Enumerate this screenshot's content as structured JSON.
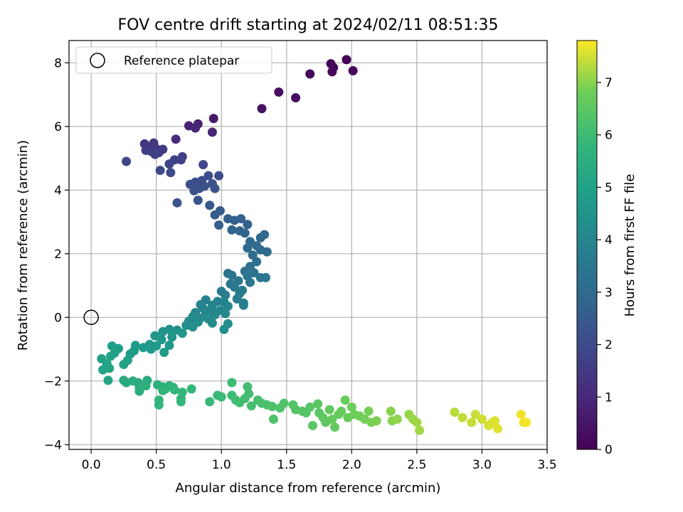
{
  "chart_data": {
    "type": "scatter",
    "title": "FOV centre drift starting at 2024/02/11 08:51:35",
    "xlabel": "Angular distance from reference (arcmin)",
    "ylabel": "Rotation from reference (arcmin)",
    "colorbar_label": "Hours from first FF file",
    "colormap": "viridis",
    "xlim": [
      -0.17,
      3.5
    ],
    "ylim": [
      -4.15,
      8.7
    ],
    "clim": [
      0,
      7.8
    ],
    "xticks": [
      "0.0",
      "0.5",
      "1.0",
      "1.5",
      "2.0",
      "2.5",
      "3.0",
      "3.5"
    ],
    "yticks": [
      "−4",
      "−2",
      "0",
      "2",
      "4",
      "6",
      "8"
    ],
    "cticks": [
      "0",
      "1",
      "2",
      "3",
      "4",
      "5",
      "6",
      "7"
    ],
    "grid": true,
    "legend": {
      "position": "top-left",
      "label": "Reference platepar"
    },
    "reference_point": {
      "x": 0.0,
      "y": 0.0
    },
    "points": [
      {
        "x": 1.96,
        "y": 8.1,
        "t": 0.05
      },
      {
        "x": 1.84,
        "y": 7.97,
        "t": 0.1
      },
      {
        "x": 1.86,
        "y": 7.85,
        "t": 0.12
      },
      {
        "x": 1.85,
        "y": 7.72,
        "t": 0.15
      },
      {
        "x": 2.01,
        "y": 7.75,
        "t": 0.18
      },
      {
        "x": 1.68,
        "y": 7.65,
        "t": 0.2
      },
      {
        "x": 1.44,
        "y": 7.08,
        "t": 0.3
      },
      {
        "x": 1.57,
        "y": 6.9,
        "t": 0.32
      },
      {
        "x": 1.31,
        "y": 6.56,
        "t": 0.4
      },
      {
        "x": 0.94,
        "y": 6.25,
        "t": 0.6
      },
      {
        "x": 0.75,
        "y": 6.02,
        "t": 0.8
      },
      {
        "x": 0.82,
        "y": 6.08,
        "t": 0.85
      },
      {
        "x": 0.8,
        "y": 5.95,
        "t": 0.9
      },
      {
        "x": 0.93,
        "y": 5.82,
        "t": 0.95
      },
      {
        "x": 0.65,
        "y": 5.6,
        "t": 1.1
      },
      {
        "x": 0.41,
        "y": 5.45,
        "t": 1.3
      },
      {
        "x": 0.48,
        "y": 5.48,
        "t": 1.35
      },
      {
        "x": 0.44,
        "y": 5.35,
        "t": 1.4
      },
      {
        "x": 0.5,
        "y": 5.3,
        "t": 1.45
      },
      {
        "x": 0.55,
        "y": 5.28,
        "t": 1.5
      },
      {
        "x": 0.46,
        "y": 5.22,
        "t": 1.55
      },
      {
        "x": 0.52,
        "y": 5.18,
        "t": 1.6
      },
      {
        "x": 0.42,
        "y": 5.25,
        "t": 1.62
      },
      {
        "x": 0.49,
        "y": 5.12,
        "t": 1.65
      },
      {
        "x": 0.7,
        "y": 5.05,
        "t": 1.7
      },
      {
        "x": 0.64,
        "y": 4.95,
        "t": 1.72
      },
      {
        "x": 0.69,
        "y": 4.95,
        "t": 1.75
      },
      {
        "x": 0.6,
        "y": 4.82,
        "t": 1.8
      },
      {
        "x": 0.27,
        "y": 4.9,
        "t": 1.85
      },
      {
        "x": 0.86,
        "y": 4.8,
        "t": 1.9
      },
      {
        "x": 0.53,
        "y": 4.62,
        "t": 1.95
      },
      {
        "x": 0.61,
        "y": 4.55,
        "t": 2.0
      },
      {
        "x": 0.9,
        "y": 4.45,
        "t": 2.05
      },
      {
        "x": 0.98,
        "y": 4.45,
        "t": 2.08
      },
      {
        "x": 0.85,
        "y": 4.3,
        "t": 2.1
      },
      {
        "x": 0.8,
        "y": 4.25,
        "t": 2.12
      },
      {
        "x": 0.76,
        "y": 4.18,
        "t": 2.15
      },
      {
        "x": 0.93,
        "y": 4.2,
        "t": 2.18
      },
      {
        "x": 0.87,
        "y": 4.12,
        "t": 2.2
      },
      {
        "x": 0.83,
        "y": 4.05,
        "t": 2.22
      },
      {
        "x": 0.95,
        "y": 4.05,
        "t": 2.25
      },
      {
        "x": 0.79,
        "y": 3.98,
        "t": 2.28
      },
      {
        "x": 0.66,
        "y": 3.6,
        "t": 2.3
      },
      {
        "x": 0.82,
        "y": 3.68,
        "t": 2.32
      },
      {
        "x": 0.91,
        "y": 3.52,
        "t": 2.4
      },
      {
        "x": 0.99,
        "y": 3.35,
        "t": 2.5
      },
      {
        "x": 0.95,
        "y": 3.22,
        "t": 2.55
      },
      {
        "x": 1.05,
        "y": 3.1,
        "t": 2.6
      },
      {
        "x": 1.1,
        "y": 3.05,
        "t": 2.65
      },
      {
        "x": 1.15,
        "y": 3.1,
        "t": 2.7
      },
      {
        "x": 0.98,
        "y": 2.9,
        "t": 2.72
      },
      {
        "x": 1.2,
        "y": 2.92,
        "t": 2.75
      },
      {
        "x": 1.08,
        "y": 2.75,
        "t": 2.8
      },
      {
        "x": 1.14,
        "y": 2.72,
        "t": 2.82
      },
      {
        "x": 1.18,
        "y": 2.65,
        "t": 2.85
      },
      {
        "x": 1.3,
        "y": 2.5,
        "t": 2.9
      },
      {
        "x": 1.33,
        "y": 2.6,
        "t": 2.92
      },
      {
        "x": 1.22,
        "y": 2.38,
        "t": 2.95
      },
      {
        "x": 1.27,
        "y": 2.25,
        "t": 3.0
      },
      {
        "x": 1.2,
        "y": 2.18,
        "t": 3.02
      },
      {
        "x": 1.3,
        "y": 2.12,
        "t": 3.05
      },
      {
        "x": 1.35,
        "y": 2.06,
        "t": 3.08
      },
      {
        "x": 1.24,
        "y": 1.96,
        "t": 3.1
      },
      {
        "x": 1.27,
        "y": 1.75,
        "t": 3.15
      },
      {
        "x": 1.22,
        "y": 1.6,
        "t": 3.2
      },
      {
        "x": 1.18,
        "y": 1.45,
        "t": 3.3
      },
      {
        "x": 1.25,
        "y": 1.4,
        "t": 3.32
      },
      {
        "x": 1.05,
        "y": 1.38,
        "t": 3.35
      },
      {
        "x": 1.08,
        "y": 1.32,
        "t": 3.38
      },
      {
        "x": 1.2,
        "y": 1.3,
        "t": 3.4
      },
      {
        "x": 1.3,
        "y": 1.25,
        "t": 3.42
      },
      {
        "x": 1.34,
        "y": 1.25,
        "t": 3.44
      },
      {
        "x": 1.13,
        "y": 1.15,
        "t": 3.46
      },
      {
        "x": 1.22,
        "y": 1.1,
        "t": 3.48
      },
      {
        "x": 1.07,
        "y": 1.05,
        "t": 3.5
      },
      {
        "x": 1.1,
        "y": 0.95,
        "t": 3.55
      },
      {
        "x": 1.16,
        "y": 0.85,
        "t": 3.6
      },
      {
        "x": 1.0,
        "y": 0.82,
        "t": 3.62
      },
      {
        "x": 1.14,
        "y": 0.75,
        "t": 3.65
      },
      {
        "x": 1.03,
        "y": 0.7,
        "t": 3.7
      },
      {
        "x": 1.12,
        "y": 0.58,
        "t": 3.75
      },
      {
        "x": 1.17,
        "y": 0.45,
        "t": 3.78
      },
      {
        "x": 1.17,
        "y": 0.38,
        "t": 3.8
      },
      {
        "x": 0.88,
        "y": 0.55,
        "t": 3.85
      },
      {
        "x": 0.97,
        "y": 0.5,
        "t": 3.88
      },
      {
        "x": 1.02,
        "y": 0.48,
        "t": 3.9
      },
      {
        "x": 0.84,
        "y": 0.4,
        "t": 3.92
      },
      {
        "x": 0.93,
        "y": 0.38,
        "t": 3.94
      },
      {
        "x": 1.05,
        "y": 0.35,
        "t": 3.96
      },
      {
        "x": 0.86,
        "y": 0.28,
        "t": 3.98
      },
      {
        "x": 0.92,
        "y": 0.25,
        "t": 4.0
      },
      {
        "x": 0.99,
        "y": 0.22,
        "t": 4.02
      },
      {
        "x": 0.8,
        "y": 0.15,
        "t": 4.05
      },
      {
        "x": 0.88,
        "y": 0.1,
        "t": 4.08
      },
      {
        "x": 0.95,
        "y": 0.08,
        "t": 4.1
      },
      {
        "x": 1.03,
        "y": 0.12,
        "t": 4.12
      },
      {
        "x": 0.78,
        "y": 0.02,
        "t": 4.15
      },
      {
        "x": 0.84,
        "y": -0.02,
        "t": 4.18
      },
      {
        "x": 0.9,
        "y": -0.05,
        "t": 4.2
      },
      {
        "x": 0.75,
        "y": -0.12,
        "t": 4.22
      },
      {
        "x": 0.82,
        "y": -0.15,
        "t": 4.25
      },
      {
        "x": 0.93,
        "y": -0.18,
        "t": 4.28
      },
      {
        "x": 1.05,
        "y": -0.2,
        "t": 4.3
      },
      {
        "x": 0.73,
        "y": -0.25,
        "t": 4.32
      },
      {
        "x": 0.78,
        "y": -0.3,
        "t": 4.35
      },
      {
        "x": 1.02,
        "y": -0.38,
        "t": 4.38
      },
      {
        "x": 0.6,
        "y": -0.38,
        "t": 4.45
      },
      {
        "x": 0.66,
        "y": -0.4,
        "t": 4.48
      },
      {
        "x": 0.55,
        "y": -0.45,
        "t": 4.5
      },
      {
        "x": 0.7,
        "y": -0.5,
        "t": 4.52
      },
      {
        "x": 0.49,
        "y": -0.58,
        "t": 4.55
      },
      {
        "x": 0.62,
        "y": -0.62,
        "t": 4.58
      },
      {
        "x": 0.54,
        "y": -0.7,
        "t": 4.6
      },
      {
        "x": 0.45,
        "y": -0.85,
        "t": 4.65
      },
      {
        "x": 0.5,
        "y": -0.9,
        "t": 4.68
      },
      {
        "x": 0.6,
        "y": -0.88,
        "t": 4.7
      },
      {
        "x": 0.34,
        "y": -0.88,
        "t": 4.72
      },
      {
        "x": 0.4,
        "y": -0.95,
        "t": 4.75
      },
      {
        "x": 0.46,
        "y": -1.0,
        "t": 4.78
      },
      {
        "x": 0.56,
        "y": -1.1,
        "t": 4.8
      },
      {
        "x": 0.33,
        "y": -1.05,
        "t": 4.82
      },
      {
        "x": 0.3,
        "y": -1.15,
        "t": 4.85
      },
      {
        "x": 0.16,
        "y": -0.9,
        "t": 4.9
      },
      {
        "x": 0.21,
        "y": -0.98,
        "t": 4.92
      },
      {
        "x": 0.18,
        "y": -1.12,
        "t": 4.95
      },
      {
        "x": 0.15,
        "y": -1.22,
        "t": 4.98
      },
      {
        "x": 0.08,
        "y": -1.3,
        "t": 5.0
      },
      {
        "x": 0.28,
        "y": -1.35,
        "t": 5.02
      },
      {
        "x": 0.25,
        "y": -1.48,
        "t": 5.05
      },
      {
        "x": 0.12,
        "y": -1.45,
        "t": 5.08
      },
      {
        "x": 0.09,
        "y": -1.65,
        "t": 5.1
      },
      {
        "x": 0.14,
        "y": -1.6,
        "t": 5.12
      },
      {
        "x": 0.13,
        "y": -1.98,
        "t": 5.15
      },
      {
        "x": 0.25,
        "y": -1.98,
        "t": 5.3
      },
      {
        "x": 0.27,
        "y": -2.05,
        "t": 5.35
      },
      {
        "x": 0.32,
        "y": -2.0,
        "t": 5.38
      },
      {
        "x": 0.36,
        "y": -2.05,
        "t": 5.4
      },
      {
        "x": 0.43,
        "y": -1.98,
        "t": 5.42
      },
      {
        "x": 0.37,
        "y": -2.2,
        "t": 5.45
      },
      {
        "x": 0.37,
        "y": -2.32,
        "t": 5.5
      },
      {
        "x": 0.42,
        "y": -2.15,
        "t": 5.52
      },
      {
        "x": 0.51,
        "y": -2.12,
        "t": 5.55
      },
      {
        "x": 0.55,
        "y": -2.18,
        "t": 5.58
      },
      {
        "x": 0.57,
        "y": -2.25,
        "t": 5.6
      },
      {
        "x": 0.6,
        "y": -2.15,
        "t": 5.62
      },
      {
        "x": 0.63,
        "y": -2.2,
        "t": 5.65
      },
      {
        "x": 0.55,
        "y": -2.3,
        "t": 5.68
      },
      {
        "x": 0.52,
        "y": -2.6,
        "t": 5.7
      },
      {
        "x": 0.52,
        "y": -2.75,
        "t": 5.72
      },
      {
        "x": 0.64,
        "y": -2.28,
        "t": 5.75
      },
      {
        "x": 0.7,
        "y": -2.35,
        "t": 5.78
      },
      {
        "x": 0.69,
        "y": -2.55,
        "t": 5.8
      },
      {
        "x": 0.69,
        "y": -2.65,
        "t": 5.82
      },
      {
        "x": 0.77,
        "y": -2.25,
        "t": 5.85
      },
      {
        "x": 0.91,
        "y": -2.65,
        "t": 5.9
      },
      {
        "x": 0.97,
        "y": -2.45,
        "t": 5.92
      },
      {
        "x": 1.0,
        "y": -2.5,
        "t": 5.95
      },
      {
        "x": 1.08,
        "y": -2.05,
        "t": 5.98
      },
      {
        "x": 1.08,
        "y": -2.45,
        "t": 6.0
      },
      {
        "x": 1.11,
        "y": -2.6,
        "t": 6.02
      },
      {
        "x": 1.14,
        "y": -2.68,
        "t": 6.05
      },
      {
        "x": 1.18,
        "y": -2.55,
        "t": 6.08
      },
      {
        "x": 1.2,
        "y": -2.18,
        "t": 6.1
      },
      {
        "x": 1.21,
        "y": -2.4,
        "t": 6.12
      },
      {
        "x": 1.23,
        "y": -2.78,
        "t": 6.15
      },
      {
        "x": 1.28,
        "y": -2.6,
        "t": 6.18
      },
      {
        "x": 1.31,
        "y": -2.7,
        "t": 6.2
      },
      {
        "x": 1.35,
        "y": -2.75,
        "t": 6.22
      },
      {
        "x": 1.39,
        "y": -2.8,
        "t": 6.25
      },
      {
        "x": 1.4,
        "y": -3.2,
        "t": 6.28
      },
      {
        "x": 1.45,
        "y": -2.85,
        "t": 6.3
      },
      {
        "x": 1.48,
        "y": -2.7,
        "t": 6.32
      },
      {
        "x": 1.55,
        "y": -2.75,
        "t": 6.35
      },
      {
        "x": 1.57,
        "y": -2.9,
        "t": 6.38
      },
      {
        "x": 1.62,
        "y": -2.95,
        "t": 6.4
      },
      {
        "x": 1.65,
        "y": -3.0,
        "t": 6.42
      },
      {
        "x": 1.68,
        "y": -2.82,
        "t": 6.45
      },
      {
        "x": 1.7,
        "y": -3.4,
        "t": 6.48
      },
      {
        "x": 1.74,
        "y": -2.72,
        "t": 6.5
      },
      {
        "x": 1.75,
        "y": -3.0,
        "t": 6.52
      },
      {
        "x": 1.78,
        "y": -3.15,
        "t": 6.55
      },
      {
        "x": 1.8,
        "y": -3.3,
        "t": 6.58
      },
      {
        "x": 1.83,
        "y": -2.9,
        "t": 6.6
      },
      {
        "x": 1.85,
        "y": -3.2,
        "t": 6.62
      },
      {
        "x": 1.87,
        "y": -3.45,
        "t": 6.65
      },
      {
        "x": 1.9,
        "y": -3.05,
        "t": 6.68
      },
      {
        "x": 1.92,
        "y": -2.95,
        "t": 6.7
      },
      {
        "x": 1.95,
        "y": -2.6,
        "t": 6.72
      },
      {
        "x": 1.97,
        "y": -3.15,
        "t": 6.75
      },
      {
        "x": 2.0,
        "y": -2.82,
        "t": 6.78
      },
      {
        "x": 2.02,
        "y": -3.05,
        "t": 6.8
      },
      {
        "x": 2.06,
        "y": -3.1,
        "t": 6.82
      },
      {
        "x": 2.1,
        "y": -3.2,
        "t": 6.85
      },
      {
        "x": 2.13,
        "y": -2.95,
        "t": 6.88
      },
      {
        "x": 2.15,
        "y": -3.3,
        "t": 6.9
      },
      {
        "x": 2.19,
        "y": -3.25,
        "t": 6.92
      },
      {
        "x": 2.3,
        "y": -2.95,
        "t": 7.0
      },
      {
        "x": 2.31,
        "y": -3.25,
        "t": 7.02
      },
      {
        "x": 2.35,
        "y": -3.2,
        "t": 7.05
      },
      {
        "x": 2.44,
        "y": -3.05,
        "t": 7.1
      },
      {
        "x": 2.47,
        "y": -3.2,
        "t": 7.12
      },
      {
        "x": 2.5,
        "y": -3.3,
        "t": 7.15
      },
      {
        "x": 2.52,
        "y": -3.55,
        "t": 7.18
      },
      {
        "x": 2.79,
        "y": -2.98,
        "t": 7.35
      },
      {
        "x": 2.85,
        "y": -3.15,
        "t": 7.38
      },
      {
        "x": 2.92,
        "y": -3.3,
        "t": 7.42
      },
      {
        "x": 2.95,
        "y": -3.05,
        "t": 7.45
      },
      {
        "x": 3.0,
        "y": -3.2,
        "t": 7.5
      },
      {
        "x": 3.05,
        "y": -3.4,
        "t": 7.52
      },
      {
        "x": 3.08,
        "y": -3.3,
        "t": 7.55
      },
      {
        "x": 3.1,
        "y": -3.25,
        "t": 7.58
      },
      {
        "x": 3.12,
        "y": -3.5,
        "t": 7.6
      },
      {
        "x": 3.3,
        "y": -3.05,
        "t": 7.7
      },
      {
        "x": 3.32,
        "y": -3.3,
        "t": 7.72
      },
      {
        "x": 3.34,
        "y": -3.3,
        "t": 7.75
      }
    ]
  }
}
